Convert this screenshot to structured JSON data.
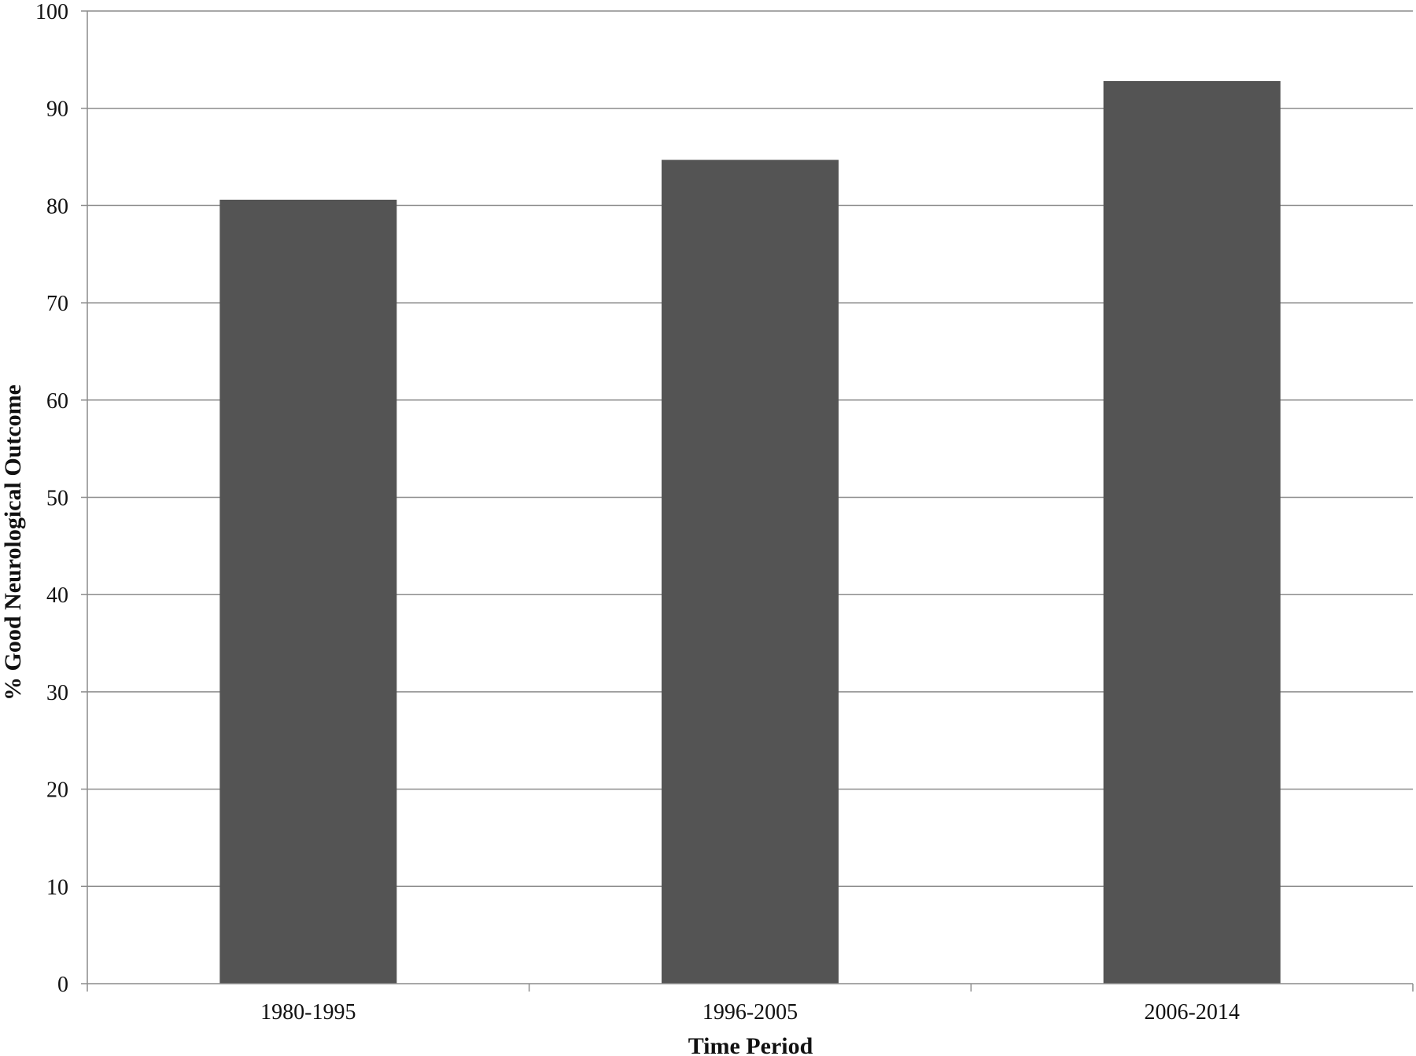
{
  "chart_data": {
    "type": "bar",
    "title": "",
    "xlabel": "Time Period",
    "ylabel": "% Good Neurological Outcome",
    "categories": [
      "1980-1995",
      "1996-2005",
      "2006-2014"
    ],
    "values": [
      80.6,
      84.7,
      92.8
    ],
    "ylim": [
      0,
      100
    ],
    "yticks": [
      "0",
      "10",
      "20",
      "30",
      "40",
      "50",
      "60",
      "70",
      "80",
      "90",
      "100"
    ],
    "grid": true,
    "legend": "none",
    "bar_color": "#545454",
    "grid_color": "#8c8c8c",
    "axis_color": "#8c8c8c"
  }
}
